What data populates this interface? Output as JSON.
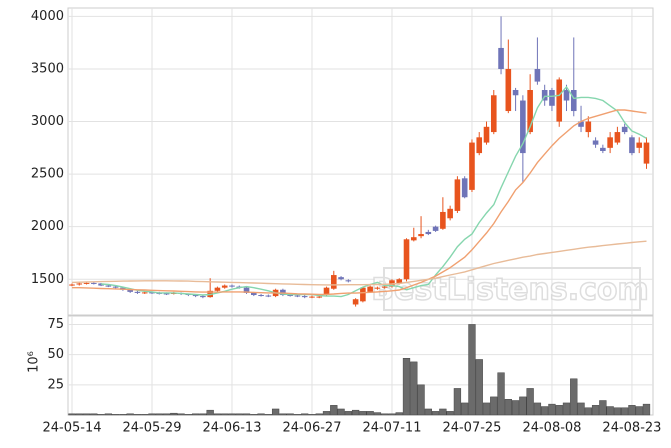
{
  "chart_data": {
    "type": "candlestick",
    "categories": [
      "24-05-14",
      null,
      null,
      null,
      null,
      null,
      null,
      null,
      null,
      null,
      null,
      "24-05-29",
      null,
      null,
      null,
      null,
      null,
      null,
      null,
      null,
      null,
      null,
      "24-06-13",
      null,
      null,
      null,
      null,
      null,
      null,
      null,
      null,
      null,
      null,
      "24-06-27",
      null,
      null,
      null,
      null,
      null,
      null,
      null,
      null,
      null,
      null,
      "24-07-11",
      null,
      null,
      null,
      null,
      null,
      null,
      null,
      null,
      null,
      null,
      "24-07-25",
      null,
      null,
      null,
      null,
      null,
      null,
      null,
      null,
      null,
      null,
      "24-08-08",
      null,
      null,
      null,
      null,
      null,
      null,
      null,
      null,
      null,
      null,
      "24-08-23",
      null,
      null
    ],
    "open": [
      1440,
      1450,
      1460,
      1465,
      1460,
      1440,
      1430,
      1420,
      1400,
      1380,
      1370,
      1375,
      1370,
      1365,
      1360,
      1370,
      1360,
      1350,
      1340,
      1330,
      1390,
      1420,
      1440,
      1430,
      1420,
      1370,
      1350,
      1345,
      1340,
      1400,
      1350,
      1345,
      1340,
      1330,
      1330,
      1350,
      1410,
      1520,
      1490,
      1260,
      1290,
      1380,
      1410,
      1420,
      1430,
      1460,
      1500,
      1870,
      1910,
      1950,
      2000,
      1980,
      2080,
      2150,
      2460,
      2350,
      2700,
      2800,
      2900,
      3700,
      3100,
      3300,
      3200,
      2900,
      3500,
      3300,
      3300,
      3000,
      3300,
      3300,
      3000,
      2900,
      2820,
      2750,
      2750,
      2800,
      2950,
      2850,
      2750,
      2600
    ],
    "high": [
      1460,
      1470,
      1475,
      1470,
      1465,
      1450,
      1440,
      1430,
      1410,
      1390,
      1385,
      1385,
      1380,
      1375,
      1380,
      1375,
      1365,
      1355,
      1350,
      1510,
      1430,
      1450,
      1450,
      1440,
      1430,
      1380,
      1360,
      1355,
      1410,
      1410,
      1360,
      1355,
      1350,
      1345,
      1345,
      1430,
      1580,
      1530,
      1500,
      1320,
      1430,
      1440,
      1430,
      1440,
      1500,
      1510,
      1890,
      1990,
      2100,
      1970,
      2010,
      2280,
      2200,
      2480,
      2480,
      2830,
      2900,
      3000,
      3300,
      4000,
      3780,
      3320,
      3250,
      3450,
      3800,
      3350,
      3320,
      3420,
      3350,
      3800,
      3150,
      3050,
      2850,
      2780,
      2900,
      2950,
      2980,
      2870,
      2850,
      2850
    ],
    "low": [
      1435,
      1440,
      1450,
      1450,
      1435,
      1425,
      1410,
      1390,
      1370,
      1360,
      1360,
      1360,
      1355,
      1350,
      1355,
      1350,
      1340,
      1330,
      1320,
      1325,
      1380,
      1410,
      1420,
      1410,
      1360,
      1340,
      1335,
      1330,
      1330,
      1340,
      1335,
      1330,
      1320,
      1320,
      1320,
      1340,
      1400,
      1490,
      1470,
      1240,
      1280,
      1370,
      1400,
      1410,
      1420,
      1450,
      1480,
      1860,
      1890,
      1920,
      1950,
      1970,
      2060,
      2130,
      2270,
      2330,
      2680,
      2780,
      2880,
      3450,
      3080,
      3100,
      2420,
      2880,
      3350,
      3150,
      3100,
      2950,
      3100,
      3050,
      2900,
      2850,
      2750,
      2700,
      2700,
      2780,
      2880,
      2680,
      2700,
      2550
    ],
    "close": [
      1450,
      1460,
      1465,
      1460,
      1440,
      1430,
      1420,
      1400,
      1380,
      1370,
      1375,
      1370,
      1365,
      1360,
      1370,
      1360,
      1350,
      1340,
      1330,
      1390,
      1420,
      1440,
      1430,
      1420,
      1370,
      1350,
      1345,
      1340,
      1400,
      1350,
      1345,
      1340,
      1330,
      1335,
      1335,
      1420,
      1540,
      1500,
      1480,
      1310,
      1420,
      1430,
      1420,
      1430,
      1490,
      1500,
      1880,
      1900,
      1930,
      1930,
      1960,
      2140,
      2170,
      2450,
      2280,
      2800,
      2850,
      2950,
      3250,
      3500,
      3500,
      3250,
      2700,
      3300,
      3380,
      3200,
      3150,
      3400,
      3200,
      3100,
      2950,
      3000,
      2780,
      2720,
      2850,
      2900,
      2900,
      2700,
      2800,
      2800
    ],
    "up_color": "#e8541e",
    "down_color": "#6f74b8",
    "ylim": [
      1160,
      4080
    ],
    "yticks": [
      1500,
      2000,
      2500,
      3000,
      3500,
      4000
    ],
    "grid": true,
    "series": [
      {
        "color": "#86d6ae",
        "values": [
          null,
          null,
          null,
          null,
          1455,
          1450,
          1440,
          1425,
          1410,
          1395,
          1385,
          1380,
          1370,
          1370,
          1370,
          1365,
          1360,
          1355,
          1350,
          1355,
          1370,
          1385,
          1405,
          1420,
          1430,
          1420,
          1405,
          1390,
          1370,
          1360,
          1355,
          1355,
          1355,
          1355,
          1345,
          1340,
          1340,
          1335,
          1355,
          1390,
          1425,
          1450,
          1470,
          1440,
          1440,
          1430,
          1400,
          1420,
          1440,
          1450,
          1540,
          1620,
          1710,
          1810,
          1880,
          1930,
          2040,
          2130,
          2210,
          2370,
          2520,
          2670,
          2790,
          2950,
          3130,
          3240,
          3240,
          3250,
          3330,
          3220,
          3230,
          3230,
          3220,
          3200,
          3150,
          3100,
          2990,
          2910,
          2880,
          2840
        ]
      },
      {
        "color": "#f0a070",
        "values": [
          1420,
          1420,
          1418,
          1415,
          1412,
          1410,
          1408,
          1405,
          1403,
          1400,
          1398,
          1395,
          1392,
          1390,
          1388,
          1385,
          1383,
          1380,
          1378,
          1378,
          1378,
          1380,
          1380,
          1380,
          1378,
          1375,
          1372,
          1370,
          1370,
          1368,
          1365,
          1362,
          1360,
          1358,
          1356,
          1356,
          1360,
          1365,
          1368,
          1368,
          1372,
          1376,
          1380,
          1384,
          1390,
          1398,
          1420,
          1445,
          1470,
          1500,
          1530,
          1570,
          1610,
          1660,
          1710,
          1780,
          1860,
          1940,
          2030,
          2140,
          2240,
          2350,
          2420,
          2510,
          2610,
          2690,
          2770,
          2840,
          2900,
          2960,
          3000,
          3030,
          3050,
          3070,
          3090,
          3110,
          3110,
          3100,
          3090,
          3080
        ]
      },
      {
        "color": "#e8bb98",
        "values": [
          1470,
          1472,
          1474,
          1476,
          1478,
          1480,
          1481,
          1482,
          1483,
          1484,
          1485,
          1485,
          1485,
          1485,
          1484,
          1483,
          1482,
          1480,
          1478,
          1476,
          1474,
          1472,
          1470,
          1468,
          1466,
          1464,
          1462,
          1460,
          1458,
          1456,
          1454,
          1452,
          1450,
          1448,
          1447,
          1446,
          1446,
          1447,
          1448,
          1448,
          1448,
          1449,
          1450,
          1452,
          1455,
          1460,
          1470,
          1480,
          1490,
          1500,
          1510,
          1525,
          1540,
          1555,
          1570,
          1590,
          1610,
          1630,
          1650,
          1665,
          1680,
          1695,
          1710,
          1720,
          1735,
          1745,
          1755,
          1765,
          1775,
          1785,
          1795,
          1805,
          1812,
          1820,
          1828,
          1835,
          1842,
          1850,
          1856,
          1862
        ]
      }
    ],
    "volume": {
      "color": "#6b6b6b",
      "ylabel": "10⁶",
      "ylim": [
        0,
        82
      ],
      "yticks": [
        25,
        50,
        75
      ],
      "values": [
        1,
        1,
        1,
        1,
        0.5,
        1,
        0.5,
        0.5,
        1,
        0.5,
        0.5,
        1,
        1,
        1,
        1.5,
        1,
        0.5,
        1,
        1,
        4,
        1,
        1,
        1,
        1,
        1,
        0.5,
        1,
        0.5,
        5,
        1,
        1,
        0.5,
        1,
        0.5,
        1,
        3,
        8,
        5,
        3,
        4,
        3,
        3,
        2,
        1,
        1,
        2,
        47,
        44,
        25,
        5,
        3,
        5,
        3,
        22,
        10,
        75,
        46,
        10,
        15,
        35,
        13,
        12,
        15,
        22,
        10,
        7,
        9,
        8,
        10,
        30,
        10,
        6,
        8,
        12,
        7,
        6,
        6,
        8,
        7,
        9
      ]
    },
    "watermark": "BestListens.com"
  }
}
